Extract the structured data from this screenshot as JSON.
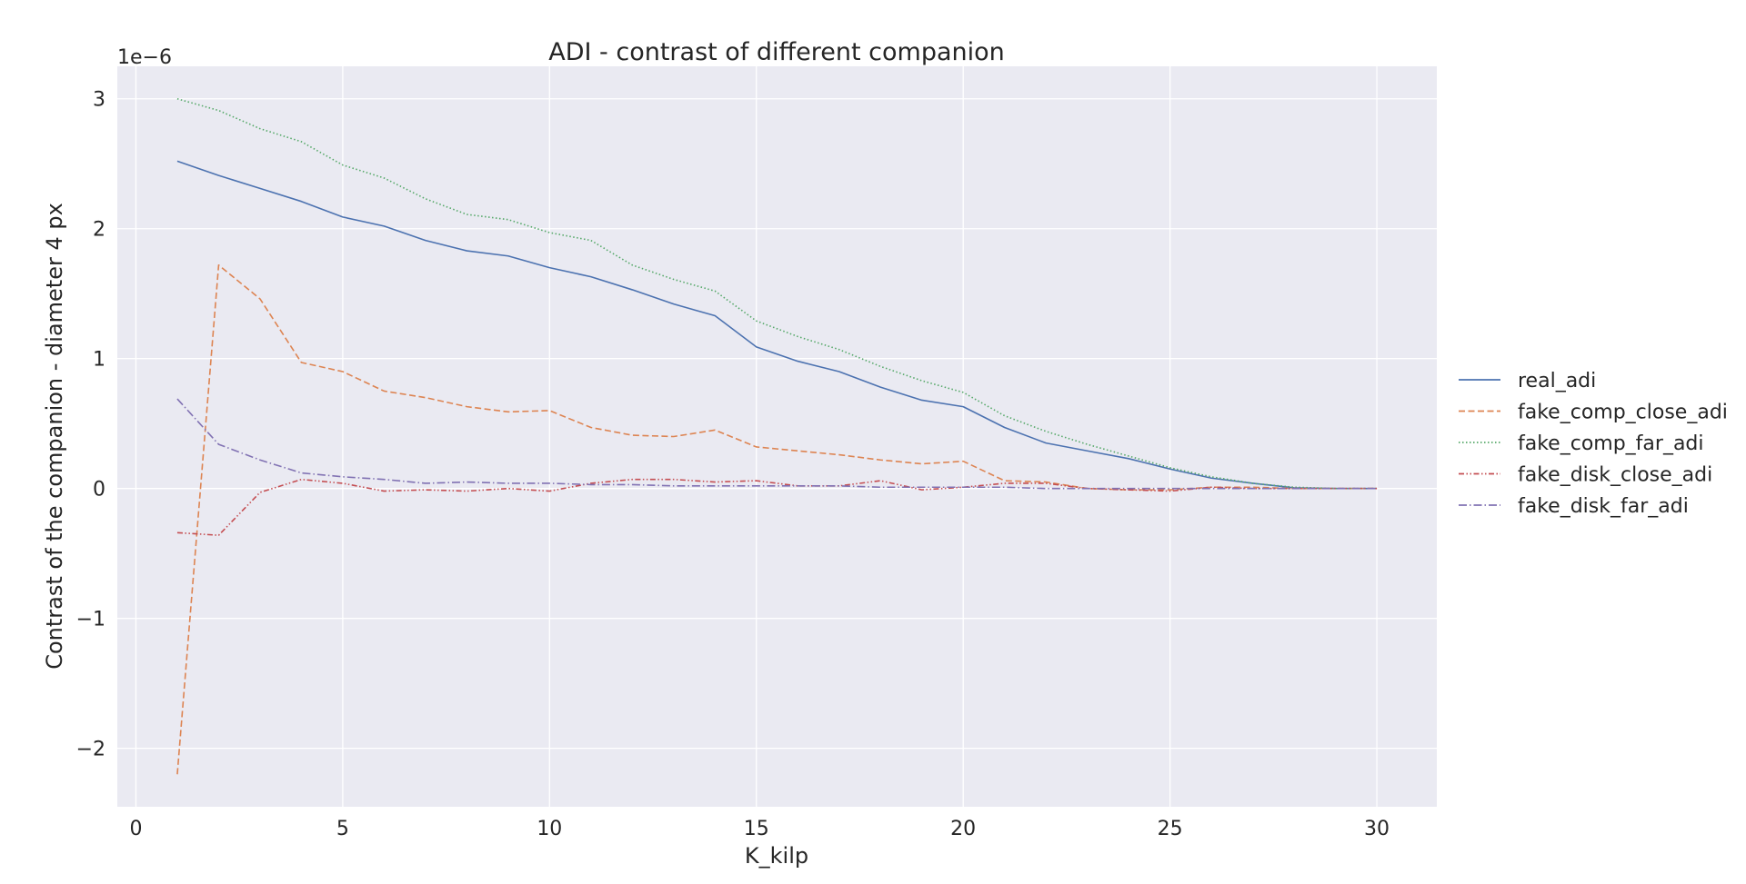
{
  "chart_data": {
    "type": "line",
    "title": "ADI - contrast of different companion",
    "xlabel": "K_kilp",
    "ylabel": "Contrast of the companion - diameter 4 px",
    "y_offset_label": "1e−6",
    "xlim": [
      -0.45,
      31.45
    ],
    "ylim": [
      -2.45,
      3.25
    ],
    "xticks": [
      0,
      5,
      10,
      15,
      20,
      25,
      30
    ],
    "yticks": [
      -2,
      -1,
      0,
      1,
      2,
      3
    ],
    "ytick_labels": [
      "−2",
      "−1",
      "0",
      "1",
      "2",
      "3"
    ],
    "grid": true,
    "legend_position": "outside-right",
    "background_color": "#eaeaf2",
    "grid_color": "#ffffff",
    "x": [
      1,
      2,
      3,
      4,
      5,
      6,
      7,
      8,
      9,
      10,
      11,
      12,
      13,
      14,
      15,
      16,
      17,
      18,
      19,
      20,
      21,
      22,
      23,
      24,
      25,
      26,
      27,
      28,
      29,
      30
    ],
    "series": [
      {
        "name": "real_adi",
        "color": "#4c72b0",
        "dash": "solid",
        "values": [
          2.52,
          2.41,
          2.31,
          2.21,
          2.09,
          2.02,
          1.91,
          1.83,
          1.79,
          1.7,
          1.63,
          1.53,
          1.42,
          1.33,
          1.09,
          0.98,
          0.9,
          0.78,
          0.68,
          0.63,
          0.47,
          0.35,
          0.29,
          0.23,
          0.15,
          0.08,
          0.04,
          0.005,
          0.0,
          0.0
        ]
      },
      {
        "name": "fake_comp_close_adi",
        "color": "#dd8452",
        "dash": "dashed",
        "values": [
          -2.2,
          1.72,
          1.46,
          0.97,
          0.9,
          0.75,
          0.7,
          0.63,
          0.59,
          0.6,
          0.47,
          0.41,
          0.4,
          0.45,
          0.32,
          0.29,
          0.26,
          0.22,
          0.19,
          0.21,
          0.06,
          0.05,
          0.0,
          -0.01,
          -0.01,
          0.01,
          0.01,
          0.0,
          0.0,
          0.0
        ]
      },
      {
        "name": "fake_comp_far_adi",
        "color": "#55a868",
        "dash": "dotted",
        "values": [
          3.0,
          2.91,
          2.77,
          2.67,
          2.49,
          2.39,
          2.23,
          2.11,
          2.07,
          1.97,
          1.91,
          1.72,
          1.61,
          1.52,
          1.29,
          1.17,
          1.07,
          0.94,
          0.83,
          0.74,
          0.56,
          0.44,
          0.34,
          0.25,
          0.16,
          0.09,
          0.04,
          0.01,
          0.0,
          0.0
        ]
      },
      {
        "name": "fake_disk_close_adi",
        "color": "#c44e52",
        "dash": "dashdotdot",
        "values": [
          -0.34,
          -0.36,
          -0.03,
          0.07,
          0.04,
          -0.02,
          -0.01,
          -0.02,
          0.0,
          -0.02,
          0.04,
          0.07,
          0.07,
          0.05,
          0.06,
          0.02,
          0.02,
          0.06,
          -0.01,
          0.01,
          0.04,
          0.04,
          0.0,
          -0.01,
          -0.02,
          0.01,
          0.0,
          0.0,
          0.0,
          0.0
        ]
      },
      {
        "name": "fake_disk_far_adi",
        "color": "#8172b3",
        "dash": "dashdot",
        "values": [
          0.69,
          0.34,
          0.22,
          0.12,
          0.09,
          0.07,
          0.04,
          0.05,
          0.04,
          0.04,
          0.03,
          0.03,
          0.02,
          0.02,
          0.02,
          0.02,
          0.02,
          0.01,
          0.01,
          0.01,
          0.01,
          0.0,
          0.0,
          0.0,
          0.0,
          0.0,
          0.0,
          0.0,
          0.0,
          0.0
        ]
      }
    ]
  }
}
